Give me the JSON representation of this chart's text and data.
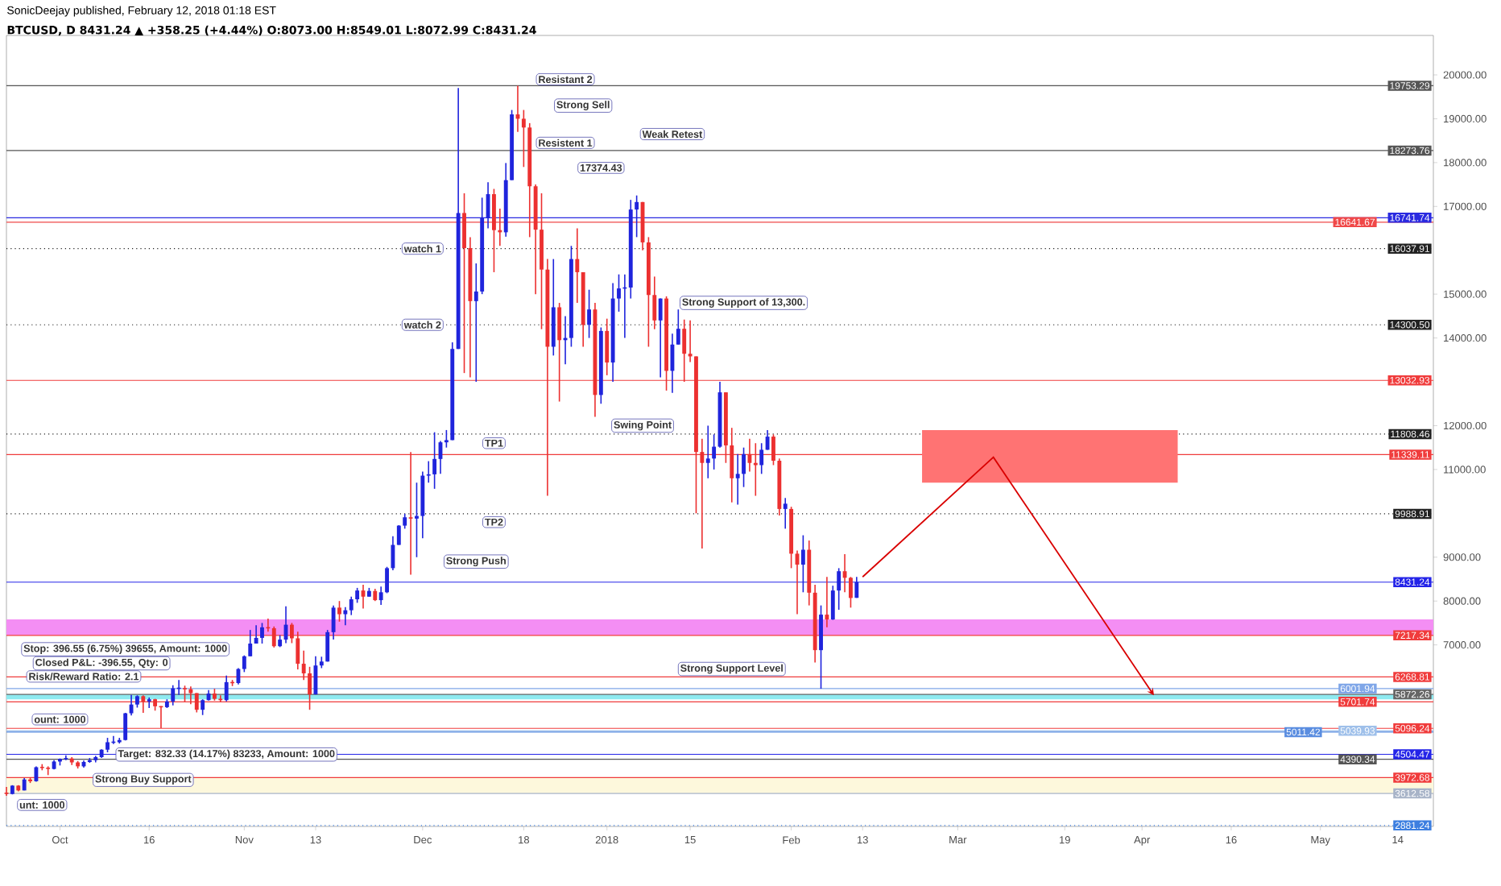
{
  "chart_data": {
    "type": "candlestick",
    "title": "SonicDeejay published, February 12, 2018 01:18 EST",
    "subtitle": "BTCUSD, D 8431.24 ▲ +358.25 (+4.44%) O:8073.00 H:8549.01 L:8072.99 C:8431.24",
    "x": [
      "2017-09-22",
      "2017-09-23",
      "2017-09-24",
      "2017-09-25",
      "2017-09-26",
      "2017-09-27",
      "2017-09-28",
      "2017-09-29",
      "2017-09-30",
      "2017-10-01",
      "2017-10-02",
      "2017-10-03",
      "2017-10-04",
      "2017-10-05",
      "2017-10-06",
      "2017-10-07",
      "2017-10-08",
      "2017-10-09",
      "2017-10-10",
      "2017-10-11",
      "2017-10-12",
      "2017-10-13",
      "2017-10-14",
      "2017-10-15",
      "2017-10-16",
      "2017-10-17",
      "2017-10-18",
      "2017-10-19",
      "2017-10-20",
      "2017-10-21",
      "2017-10-22",
      "2017-10-23",
      "2017-10-24",
      "2017-10-25",
      "2017-10-26",
      "2017-10-27",
      "2017-10-28",
      "2017-10-29",
      "2017-10-30",
      "2017-10-31",
      "2017-11-01",
      "2017-11-02",
      "2017-11-03",
      "2017-11-04",
      "2017-11-05",
      "2017-11-06",
      "2017-11-07",
      "2017-11-08",
      "2017-11-09",
      "2017-11-10",
      "2017-11-11",
      "2017-11-12",
      "2017-11-13",
      "2017-11-14",
      "2017-11-15",
      "2017-11-16",
      "2017-11-17",
      "2017-11-18",
      "2017-11-19",
      "2017-11-20",
      "2017-11-21",
      "2017-11-22",
      "2017-11-23",
      "2017-11-24",
      "2017-11-25",
      "2017-11-26",
      "2017-11-27",
      "2017-11-28",
      "2017-11-29",
      "2017-11-30",
      "2017-12-01",
      "2017-12-02",
      "2017-12-03",
      "2017-12-04",
      "2017-12-05",
      "2017-12-06",
      "2017-12-07",
      "2017-12-08",
      "2017-12-09",
      "2017-12-10",
      "2017-12-11",
      "2017-12-12",
      "2017-12-13",
      "2017-12-14",
      "2017-12-15",
      "2017-12-16",
      "2017-12-17",
      "2017-12-18",
      "2017-12-19",
      "2017-12-20",
      "2017-12-21",
      "2017-12-22",
      "2017-12-23",
      "2017-12-24",
      "2017-12-25",
      "2017-12-26",
      "2017-12-27",
      "2017-12-28",
      "2017-12-29",
      "2017-12-30",
      "2017-12-31",
      "2018-01-01",
      "2018-01-02",
      "2018-01-03",
      "2018-01-04",
      "2018-01-05",
      "2018-01-06",
      "2018-01-07",
      "2018-01-08",
      "2018-01-09",
      "2018-01-10",
      "2018-01-11",
      "2018-01-12",
      "2018-01-13",
      "2018-01-14",
      "2018-01-15",
      "2018-01-16",
      "2018-01-17",
      "2018-01-18",
      "2018-01-19",
      "2018-01-20",
      "2018-01-21",
      "2018-01-22",
      "2018-01-23",
      "2018-01-24",
      "2018-01-25",
      "2018-01-26",
      "2018-01-27",
      "2018-01-28",
      "2018-01-29",
      "2018-01-30",
      "2018-01-31",
      "2018-02-01",
      "2018-02-02",
      "2018-02-03",
      "2018-02-04",
      "2018-02-05",
      "2018-02-06",
      "2018-02-07",
      "2018-02-08",
      "2018-02-09",
      "2018-02-10",
      "2018-02-11",
      "2018-02-12"
    ],
    "ohlc": [
      [
        3630,
        3760,
        3560,
        3600
      ],
      [
        3600,
        3800,
        3590,
        3790
      ],
      [
        3790,
        3800,
        3660,
        3680
      ],
      [
        3680,
        3960,
        3680,
        3930
      ],
      [
        3930,
        3980,
        3850,
        3890
      ],
      [
        3890,
        4230,
        3880,
        4210
      ],
      [
        4210,
        4280,
        4140,
        4200
      ],
      [
        4200,
        4230,
        4030,
        4170
      ],
      [
        4170,
        4370,
        4160,
        4340
      ],
      [
        4340,
        4410,
        4250,
        4400
      ],
      [
        4400,
        4480,
        4370,
        4410
      ],
      [
        4410,
        4440,
        4260,
        4320
      ],
      [
        4320,
        4350,
        4180,
        4230
      ],
      [
        4230,
        4360,
        4200,
        4330
      ],
      [
        4330,
        4420,
        4310,
        4370
      ],
      [
        4370,
        4470,
        4320,
        4440
      ],
      [
        4440,
        4620,
        4420,
        4610
      ],
      [
        4610,
        4880,
        4550,
        4780
      ],
      [
        4780,
        4920,
        4740,
        4780
      ],
      [
        4780,
        4880,
        4750,
        4830
      ],
      [
        4830,
        5450,
        4820,
        5440
      ],
      [
        5440,
        5860,
        5390,
        5640
      ],
      [
        5640,
        5850,
        5570,
        5830
      ],
      [
        5830,
        5850,
        5450,
        5710
      ],
      [
        5710,
        5800,
        5560,
        5760
      ],
      [
        5760,
        5770,
        5500,
        5600
      ],
      [
        5600,
        5600,
        5100,
        5580
      ],
      [
        5580,
        5760,
        5560,
        5710
      ],
      [
        5710,
        6080,
        5620,
        6010
      ],
      [
        6010,
        6200,
        5860,
        6010
      ],
      [
        6010,
        6070,
        5700,
        5990
      ],
      [
        5990,
        6050,
        5650,
        5900
      ],
      [
        5900,
        5900,
        5460,
        5520
      ],
      [
        5520,
        5760,
        5400,
        5740
      ],
      [
        5740,
        5970,
        5730,
        5890
      ],
      [
        5890,
        6000,
        5730,
        5770
      ],
      [
        5770,
        5850,
        5690,
        5740
      ],
      [
        5740,
        6300,
        5710,
        6150
      ],
      [
        6150,
        6200,
        6060,
        6130
      ],
      [
        6130,
        6470,
        6100,
        6450
      ],
      [
        6450,
        6760,
        6380,
        6740
      ],
      [
        6740,
        7340,
        6740,
        7030
      ],
      [
        7030,
        7450,
        7030,
        7160
      ],
      [
        7160,
        7500,
        7030,
        7400
      ],
      [
        7400,
        7600,
        7300,
        7380
      ],
      [
        7380,
        7420,
        6940,
        6970
      ],
      [
        6970,
        7220,
        6950,
        7120
      ],
      [
        7120,
        7880,
        7040,
        7460
      ],
      [
        7460,
        7500,
        7040,
        7150
      ],
      [
        7150,
        7300,
        6440,
        6570
      ],
      [
        6570,
        6870,
        6200,
        6350
      ],
      [
        6350,
        6500,
        5520,
        5870
      ],
      [
        5870,
        6740,
        5870,
        6530
      ],
      [
        6530,
        6730,
        6470,
        6620
      ],
      [
        6620,
        7340,
        6620,
        7290
      ],
      [
        7290,
        7900,
        7120,
        7850
      ],
      [
        7850,
        8000,
        7530,
        7700
      ],
      [
        7700,
        7860,
        7450,
        7790
      ],
      [
        7790,
        8100,
        7680,
        8040
      ],
      [
        8040,
        8300,
        7960,
        8240
      ],
      [
        8240,
        8370,
        7830,
        8100
      ],
      [
        8100,
        8300,
        8100,
        8230
      ],
      [
        8230,
        8280,
        8000,
        8020
      ],
      [
        8020,
        8330,
        7910,
        8200
      ],
      [
        8200,
        8780,
        8180,
        8750
      ],
      [
        8750,
        9480,
        8700,
        9280
      ],
      [
        9280,
        9730,
        9280,
        9720
      ],
      [
        9720,
        9990,
        9650,
        9910
      ],
      [
        9910,
        11400,
        8600,
        9880
      ],
      [
        9880,
        10700,
        9000,
        9940
      ],
      [
        9940,
        10950,
        9430,
        10860
      ],
      [
        10860,
        11190,
        10700,
        10890
      ],
      [
        10890,
        11850,
        10560,
        11240
      ],
      [
        11240,
        11650,
        10900,
        11620
      ],
      [
        11620,
        11900,
        11500,
        11670
      ],
      [
        11670,
        13900,
        11670,
        13750
      ],
      [
        13750,
        19700,
        13750,
        16850
      ],
      [
        16850,
        17300,
        13200,
        16050
      ],
      [
        16050,
        16300,
        13100,
        14840
      ],
      [
        14840,
        15700,
        13000,
        15060
      ],
      [
        15060,
        17200,
        15000,
        16730
      ],
      [
        16730,
        17550,
        16500,
        17280
      ],
      [
        17280,
        17400,
        15500,
        16460
      ],
      [
        16460,
        16950,
        16100,
        16410
      ],
      [
        16410,
        17990,
        16310,
        17600
      ],
      [
        17600,
        19200,
        17600,
        19100
      ],
      [
        19100,
        19750,
        18700,
        19000
      ],
      [
        19000,
        19200,
        17900,
        18800
      ],
      [
        18800,
        18900,
        16300,
        17460
      ],
      [
        17460,
        17500,
        15000,
        16470
      ],
      [
        16470,
        17300,
        14200,
        15560
      ],
      [
        15560,
        15800,
        10400,
        13800
      ],
      [
        13800,
        15800,
        13600,
        14700
      ],
      [
        14700,
        14800,
        12550,
        13950
      ],
      [
        13950,
        14500,
        13400,
        14000
      ],
      [
        14000,
        16100,
        13800,
        15800
      ],
      [
        15800,
        16500,
        14800,
        15500
      ],
      [
        15500,
        15500,
        13800,
        14300
      ],
      [
        14300,
        15100,
        14000,
        14650
      ],
      [
        14650,
        14800,
        12200,
        12700
      ],
      [
        12700,
        14240,
        12500,
        14160
      ],
      [
        14160,
        14440,
        13150,
        13440
      ],
      [
        13440,
        15250,
        13000,
        14900
      ],
      [
        14900,
        15450,
        14600,
        15130
      ],
      [
        15130,
        15450,
        14000,
        15150
      ],
      [
        15150,
        17150,
        14900,
        16930
      ],
      [
        16930,
        17250,
        16300,
        17100
      ],
      [
        17100,
        17100,
        16000,
        16180
      ],
      [
        16180,
        16300,
        13800,
        14980
      ],
      [
        14980,
        15400,
        14200,
        14400
      ],
      [
        14400,
        14900,
        13100,
        14900
      ],
      [
        14900,
        14950,
        12800,
        13250
      ],
      [
        13250,
        14100,
        12750,
        13850
      ],
      [
        13850,
        14650,
        13850,
        14210
      ],
      [
        14210,
        14420,
        13000,
        13640
      ],
      [
        13640,
        14400,
        13450,
        13580
      ],
      [
        13580,
        13580,
        10000,
        11400
      ],
      [
        11400,
        11700,
        9200,
        11150
      ],
      [
        11150,
        12000,
        10800,
        11250
      ],
      [
        11250,
        11800,
        11000,
        11520
      ],
      [
        11520,
        13000,
        11500,
        12760
      ],
      [
        12760,
        12760,
        11150,
        11550
      ],
      [
        11550,
        11950,
        10250,
        10800
      ],
      [
        10800,
        11350,
        10200,
        10900
      ],
      [
        10900,
        11500,
        10600,
        11350
      ],
      [
        11350,
        11700,
        10950,
        11150
      ],
      [
        11150,
        11600,
        10400,
        11100
      ],
      [
        11100,
        11600,
        10900,
        11450
      ],
      [
        11450,
        11900,
        11450,
        11750
      ],
      [
        11750,
        11800,
        11100,
        11200
      ],
      [
        11200,
        11250,
        9950,
        10100
      ],
      [
        10100,
        10350,
        9650,
        10220
      ],
      [
        10100,
        10150,
        8750,
        9080
      ],
      [
        9080,
        9150,
        7700,
        8830
      ],
      [
        8830,
        9500,
        8200,
        9170
      ],
      [
        9170,
        9380,
        7900,
        8190
      ],
      [
        8190,
        8370,
        6600,
        6880
      ],
      [
        6880,
        7900,
        6000,
        7690
      ],
      [
        7690,
        8550,
        7400,
        7580
      ],
      [
        7580,
        8350,
        7570,
        8240
      ],
      [
        8240,
        8750,
        7800,
        8680
      ],
      [
        8680,
        9070,
        8200,
        8530
      ],
      [
        8530,
        8550,
        7850,
        8070
      ],
      [
        8073.0,
        8549.01,
        8072.99,
        8431.24
      ]
    ],
    "xlim": [
      "2017-09-22",
      "2018-05-20"
    ],
    "xticks": [
      {
        "value": "2017-10-01",
        "label": "Oct"
      },
      {
        "value": "2017-10-16",
        "label": "16"
      },
      {
        "value": "2017-11-01",
        "label": "Nov"
      },
      {
        "value": "2017-11-13",
        "label": "13"
      },
      {
        "value": "2017-12-01",
        "label": "Dec"
      },
      {
        "value": "2017-12-18",
        "label": "18"
      },
      {
        "value": "2018-01-01",
        "label": "2018"
      },
      {
        "value": "2018-01-15",
        "label": "15"
      },
      {
        "value": "2018-02-01",
        "label": "Feb"
      },
      {
        "value": "2018-02-13",
        "label": "13"
      },
      {
        "value": "2018-03-01",
        "label": "Mar"
      },
      {
        "value": "2018-03-19",
        "label": "19"
      },
      {
        "value": "2018-04-01",
        "label": "Apr"
      },
      {
        "value": "2018-04-16",
        "label": "16"
      },
      {
        "value": "2018-05-01",
        "label": "May"
      },
      {
        "value": "2018-05-14",
        "label": "14"
      }
    ],
    "ylim": [
      2860,
      20900
    ],
    "yticks": [
      {
        "value": 7000,
        "label": "7000.00"
      },
      {
        "value": 8000,
        "label": "8000.00"
      },
      {
        "value": 9000,
        "label": "9000.00"
      },
      {
        "value": 11000,
        "label": "11000.00"
      },
      {
        "value": 12000,
        "label": "12000.00"
      },
      {
        "value": 14000,
        "label": "14000.00"
      },
      {
        "value": 15000,
        "label": "15000.00"
      },
      {
        "value": 17000,
        "label": "17000.00"
      },
      {
        "value": 18000,
        "label": "18000.00"
      },
      {
        "value": 19000,
        "label": "19000.00"
      },
      {
        "value": 20000,
        "label": "20000.00"
      }
    ],
    "bands": [
      {
        "axis": "y",
        "from": 7217.34,
        "to": 7580,
        "color": "#f48ef4"
      },
      {
        "axis": "y",
        "from": 5760,
        "to": 5872.26,
        "color": "#8eeaf0"
      },
      {
        "axis": "y",
        "from": 3612.58,
        "to": 3972.68,
        "color": "#fdf8dc"
      }
    ],
    "ref_lines": [
      {
        "axis": "y",
        "value": 19753.29,
        "label": "19753.29",
        "color": "#555555",
        "line_style": "solid"
      },
      {
        "axis": "y",
        "value": 18273.76,
        "label": "18273.76",
        "color": "#555555",
        "line_style": "solid"
      },
      {
        "axis": "y",
        "value": 16741.74,
        "label": "16741.74",
        "color": "#2a2ae0",
        "line_style": "solid"
      },
      {
        "axis": "y",
        "value": 16641.67,
        "label": "16641.67",
        "color": "#f04848",
        "line_style": "solid"
      },
      {
        "axis": "y",
        "value": 16037.91,
        "label": "16037.91",
        "color": "#222222",
        "line_style": "dotted"
      },
      {
        "axis": "y",
        "value": 14300.5,
        "label": "14300.50",
        "color": "#222222",
        "line_style": "dotted"
      },
      {
        "axis": "y",
        "value": 13032.93,
        "label": "13032.93",
        "color": "#f03c3c",
        "line_style": "solid"
      },
      {
        "axis": "y",
        "value": 11808.46,
        "label": "11808.46",
        "color": "#222222",
        "line_style": "dotted"
      },
      {
        "axis": "y",
        "value": 11339.11,
        "label": "11339.11",
        "color": "#f03c3c",
        "line_style": "solid"
      },
      {
        "axis": "y",
        "value": 9988.91,
        "label": "9988.91",
        "color": "#222222",
        "line_style": "dotted"
      },
      {
        "axis": "y",
        "value": 8431.24,
        "label": "8431.24",
        "color": "#2424e8",
        "line_style": "solid"
      },
      {
        "axis": "y",
        "value": 7217.34,
        "label": "7217.34",
        "color": "#f03c3c",
        "line_style": "solid"
      },
      {
        "axis": "y",
        "value": 6268.81,
        "label": "6268.81",
        "color": "#f03c3c",
        "line_style": "solid"
      },
      {
        "axis": "y",
        "value": 6001.94,
        "label": "6001.94",
        "color": "#7fa6e8",
        "line_style": "solid"
      },
      {
        "axis": "y",
        "value": 5872.26,
        "label": "5872.26",
        "color": "#666666",
        "line_style": "solid"
      },
      {
        "axis": "y",
        "value": 5701.74,
        "label": "5701.74",
        "color": "#f03c3c",
        "line_style": "solid"
      },
      {
        "axis": "y",
        "value": 5096.24,
        "label": "5096.24",
        "color": "#f03c3c",
        "line_style": "solid"
      },
      {
        "axis": "y",
        "value": 5039.93,
        "label": "5039.93",
        "color": "#9fc0ea",
        "line_style": "solid"
      },
      {
        "axis": "y",
        "value": 5011.42,
        "label": "5011.42",
        "color": "#5a8de0",
        "line_style": "solid"
      },
      {
        "axis": "y",
        "value": 4504.47,
        "label": "4504.47",
        "color": "#2424e8",
        "line_style": "solid"
      },
      {
        "axis": "y",
        "value": 4390.34,
        "label": "4390.34",
        "color": "#555555",
        "line_style": "solid"
      },
      {
        "axis": "y",
        "value": 3972.68,
        "label": "3972.68",
        "color": "#f03c3c",
        "line_style": "solid"
      },
      {
        "axis": "y",
        "value": 3612.58,
        "label": "3612.58",
        "color": "#a8b4c8",
        "line_style": "solid"
      },
      {
        "axis": "y",
        "value": 2881.24,
        "label": "2881.24",
        "color": "#3d7fe0",
        "line_style": "dotted"
      }
    ],
    "annotations": [
      {
        "text": "Resistant 2",
        "x": "2017-12-25",
        "y": 19900
      },
      "Strong Sell",
      {
        "text": "Resistent 1",
        "x": "2017-12-25",
        "y": 18450
      },
      "17374.43",
      "Weak Retest",
      {
        "text": "watch 1",
        "x": "2017-12-01",
        "y": 16037.91
      },
      {
        "text": "watch 2",
        "x": "2017-12-01",
        "y": 14300.5
      },
      "Strong Support of 13,300.",
      "Swing Point",
      {
        "text": "TP1",
        "x": "2017-12-13",
        "y": 11600
      },
      {
        "text": "TP2",
        "x": "2017-12-13",
        "y": 9800
      },
      "Strong Push",
      {
        "text": "Strong Support Level",
        "x": "2018-01-22",
        "y": 6450
      },
      "Stop: 396.55 (6.75%) 39655, Amount: 1000",
      "Closed P&L: -396.55, Qty: 0",
      "Risk/Reward Ratio: 2.1",
      "ount: 1000",
      "Target: 832.33 (14.17%) 83233, Amount: 1000",
      "Strong Buy Support",
      "unt: 1000"
    ]
  }
}
